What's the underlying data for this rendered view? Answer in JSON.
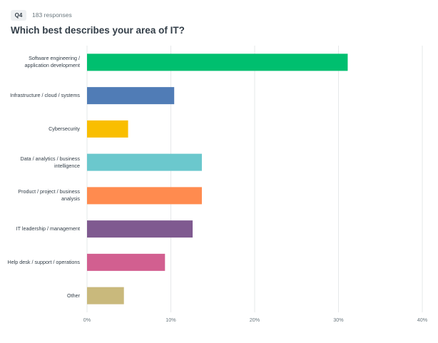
{
  "header": {
    "question": "Q4",
    "responses": "183 responses"
  },
  "chart_data": {
    "type": "bar",
    "orientation": "horizontal",
    "title": "Which best describes your area of IT?",
    "categories": [
      "Software engineering / application development",
      "Infrastructure / cloud / systems",
      "Cybersecurity",
      "Data / analytics / business intelligence",
      "Product / project / business analysis",
      "IT leadership / management",
      "Help desk / support / operations",
      "Other"
    ],
    "values": [
      31.1,
      10.4,
      4.9,
      13.7,
      13.7,
      12.6,
      9.3,
      4.4
    ],
    "colors": [
      "#00bf6f",
      "#507cb6",
      "#f9be00",
      "#6bc8cd",
      "#ff8b4f",
      "#7f5a90",
      "#d25f90",
      "#c9b97c"
    ],
    "xlim": [
      0,
      40
    ],
    "xticks": [
      {
        "value": 0,
        "label": "0%"
      },
      {
        "value": 10,
        "label": "10%"
      },
      {
        "value": 20,
        "label": "20%"
      },
      {
        "value": 30,
        "label": "30%"
      },
      {
        "value": 40,
        "label": "40%"
      }
    ],
    "grid": true
  }
}
